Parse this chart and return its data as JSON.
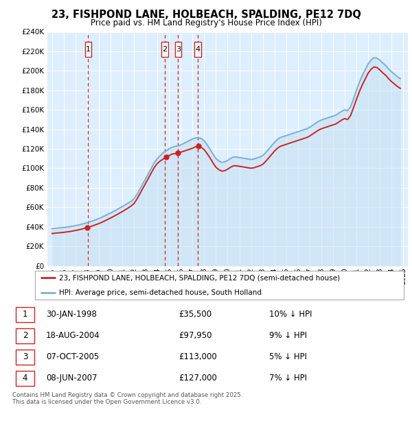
{
  "title": "23, FISHPOND LANE, HOLBEACH, SPALDING, PE12 7DQ",
  "subtitle": "Price paid vs. HM Land Registry's House Price Index (HPI)",
  "background_color": "#ffffff",
  "plot_bg_color": "#ddeeff",
  "grid_color": "#ffffff",
  "hpi_color": "#7bafd4",
  "hpi_fill_color": "#c5dff0",
  "price_color": "#cc2222",
  "transactions": [
    {
      "num": 1,
      "year": 1998.08,
      "price": 35500,
      "label": "1"
    },
    {
      "num": 2,
      "year": 2004.63,
      "price": 97950,
      "label": "2"
    },
    {
      "num": 3,
      "year": 2005.77,
      "price": 113000,
      "label": "3"
    },
    {
      "num": 4,
      "year": 2007.44,
      "price": 127000,
      "label": "4"
    }
  ],
  "transaction_vline_color": "#cc2222",
  "legend_label_price": "23, FISHPOND LANE, HOLBEACH, SPALDING, PE12 7DQ (semi-detached house)",
  "legend_label_hpi": "HPI: Average price, semi-detached house, South Holland",
  "table_rows": [
    {
      "num": "1",
      "date": "30-JAN-1998",
      "price": "£35,500",
      "hpi": "10% ↓ HPI"
    },
    {
      "num": "2",
      "date": "18-AUG-2004",
      "price": "£97,950",
      "hpi": "9% ↓ HPI"
    },
    {
      "num": "3",
      "date": "07-OCT-2005",
      "price": "£113,000",
      "hpi": "5% ↓ HPI"
    },
    {
      "num": "4",
      "date": "08-JUN-2007",
      "price": "£127,000",
      "hpi": "7% ↓ HPI"
    }
  ],
  "footer": "Contains HM Land Registry data © Crown copyright and database right 2025.\nThis data is licensed under the Open Government Licence v3.0.",
  "ylim": [
    0,
    240000
  ],
  "yticks": [
    0,
    20000,
    40000,
    60000,
    80000,
    100000,
    120000,
    140000,
    160000,
    180000,
    200000,
    220000,
    240000
  ],
  "ytick_labels": [
    "£0",
    "£20K",
    "£40K",
    "£60K",
    "£80K",
    "£100K",
    "£120K",
    "£140K",
    "£160K",
    "£180K",
    "£200K",
    "£220K",
    "£240K"
  ],
  "xlim": [
    1994.6,
    2025.4
  ],
  "hpi_data": {
    "years": [
      1995.0,
      1995.25,
      1995.5,
      1995.75,
      1996.0,
      1996.25,
      1996.5,
      1996.75,
      1997.0,
      1997.25,
      1997.5,
      1997.75,
      1998.0,
      1998.25,
      1998.5,
      1998.75,
      1999.0,
      1999.25,
      1999.5,
      1999.75,
      2000.0,
      2000.25,
      2000.5,
      2000.75,
      2001.0,
      2001.25,
      2001.5,
      2001.75,
      2002.0,
      2002.25,
      2002.5,
      2002.75,
      2003.0,
      2003.25,
      2003.5,
      2003.75,
      2004.0,
      2004.25,
      2004.5,
      2004.75,
      2005.0,
      2005.25,
      2005.5,
      2005.75,
      2006.0,
      2006.25,
      2006.5,
      2006.75,
      2007.0,
      2007.25,
      2007.5,
      2007.75,
      2008.0,
      2008.25,
      2008.5,
      2008.75,
      2009.0,
      2009.25,
      2009.5,
      2009.75,
      2010.0,
      2010.25,
      2010.5,
      2010.75,
      2011.0,
      2011.25,
      2011.5,
      2011.75,
      2012.0,
      2012.25,
      2012.5,
      2012.75,
      2013.0,
      2013.25,
      2013.5,
      2013.75,
      2014.0,
      2014.25,
      2014.5,
      2014.75,
      2015.0,
      2015.25,
      2015.5,
      2015.75,
      2016.0,
      2016.25,
      2016.5,
      2016.75,
      2017.0,
      2017.25,
      2017.5,
      2017.75,
      2018.0,
      2018.25,
      2018.5,
      2018.75,
      2019.0,
      2019.25,
      2019.5,
      2019.75,
      2020.0,
      2020.25,
      2020.5,
      2020.75,
      2021.0,
      2021.25,
      2021.5,
      2021.75,
      2022.0,
      2022.25,
      2022.5,
      2022.75,
      2023.0,
      2023.25,
      2023.5,
      2023.75,
      2024.0,
      2024.25,
      2024.5,
      2024.75
    ],
    "values": [
      38000,
      38300,
      38600,
      38900,
      39200,
      39600,
      40000,
      40500,
      41100,
      41700,
      42400,
      43200,
      44100,
      45100,
      46100,
      47200,
      48400,
      49700,
      51100,
      52600,
      54100,
      55700,
      57300,
      59000,
      60700,
      62400,
      64200,
      66000,
      68500,
      73000,
      78500,
      84000,
      89500,
      95000,
      100500,
      106000,
      110000,
      113000,
      116000,
      118000,
      120000,
      121500,
      122500,
      123000,
      124000,
      125500,
      127000,
      128500,
      130000,
      131000,
      131500,
      130500,
      128000,
      124000,
      119500,
      114500,
      110000,
      107500,
      106000,
      106500,
      108000,
      110000,
      111500,
      111500,
      111000,
      110500,
      110000,
      109500,
      109000,
      109500,
      110500,
      111500,
      113000,
      116000,
      119500,
      123000,
      126500,
      129500,
      131500,
      132500,
      133500,
      134500,
      135500,
      136500,
      137500,
      138500,
      139500,
      140500,
      142000,
      144000,
      146000,
      148000,
      149500,
      150500,
      151500,
      152500,
      153500,
      154500,
      156500,
      158500,
      160000,
      159000,
      163000,
      171000,
      180000,
      188000,
      195000,
      201000,
      207000,
      211000,
      213500,
      213000,
      211000,
      208000,
      205500,
      202000,
      199000,
      196500,
      194000,
      192000
    ]
  },
  "price_data": {
    "years": [
      1995.0,
      1995.25,
      1995.5,
      1995.75,
      1996.0,
      1996.25,
      1996.5,
      1996.75,
      1997.0,
      1997.25,
      1997.5,
      1997.75,
      1998.0,
      1998.25,
      1998.5,
      1998.75,
      1999.0,
      1999.25,
      1999.5,
      1999.75,
      2000.0,
      2000.25,
      2000.5,
      2000.75,
      2001.0,
      2001.25,
      2001.5,
      2001.75,
      2002.0,
      2002.25,
      2002.5,
      2002.75,
      2003.0,
      2003.25,
      2003.5,
      2003.75,
      2004.0,
      2004.25,
      2004.5,
      2004.75,
      2005.0,
      2005.25,
      2005.5,
      2005.75,
      2006.0,
      2006.25,
      2006.5,
      2006.75,
      2007.0,
      2007.25,
      2007.5,
      2007.75,
      2008.0,
      2008.25,
      2008.5,
      2008.75,
      2009.0,
      2009.25,
      2009.5,
      2009.75,
      2010.0,
      2010.25,
      2010.5,
      2010.75,
      2011.0,
      2011.25,
      2011.5,
      2011.75,
      2012.0,
      2012.25,
      2012.5,
      2012.75,
      2013.0,
      2013.25,
      2013.5,
      2013.75,
      2014.0,
      2014.25,
      2014.5,
      2014.75,
      2015.0,
      2015.25,
      2015.5,
      2015.75,
      2016.0,
      2016.25,
      2016.5,
      2016.75,
      2017.0,
      2017.25,
      2017.5,
      2017.75,
      2018.0,
      2018.25,
      2018.5,
      2018.75,
      2019.0,
      2019.25,
      2019.5,
      2019.75,
      2020.0,
      2020.25,
      2020.5,
      2020.75,
      2021.0,
      2021.25,
      2021.5,
      2021.75,
      2022.0,
      2022.25,
      2022.5,
      2022.75,
      2023.0,
      2023.25,
      2023.5,
      2023.75,
      2024.0,
      2024.25,
      2024.5,
      2024.75
    ],
    "values": [
      33000,
      33300,
      33600,
      33900,
      34200,
      34600,
      35000,
      35500,
      36100,
      36700,
      37400,
      38200,
      39100,
      40000,
      41000,
      42100,
      43200,
      44500,
      45900,
      47400,
      48900,
      50500,
      52100,
      53800,
      55500,
      57300,
      59200,
      61200,
      63700,
      68200,
      73700,
      79200,
      84700,
      90200,
      95700,
      101000,
      105000,
      107500,
      109500,
      111500,
      113000,
      114500,
      115000,
      115500,
      116500,
      117500,
      118500,
      119500,
      120500,
      122000,
      122500,
      121500,
      119000,
      115000,
      110500,
      105500,
      101000,
      98500,
      97000,
      97500,
      99000,
      101000,
      102500,
      102500,
      102000,
      101500,
      101000,
      100500,
      100000,
      100500,
      101500,
      102500,
      104000,
      107000,
      110500,
      114000,
      117500,
      120500,
      122500,
      123500,
      124500,
      125500,
      126500,
      127500,
      128500,
      129500,
      130500,
      131500,
      133000,
      135000,
      137000,
      139000,
      140500,
      141500,
      142500,
      143500,
      144500,
      145500,
      147500,
      149500,
      151000,
      150000,
      154000,
      162000,
      170500,
      178500,
      185500,
      191500,
      197500,
      201500,
      204000,
      203500,
      201000,
      198000,
      195500,
      192000,
      189000,
      186500,
      184000,
      182000
    ]
  }
}
